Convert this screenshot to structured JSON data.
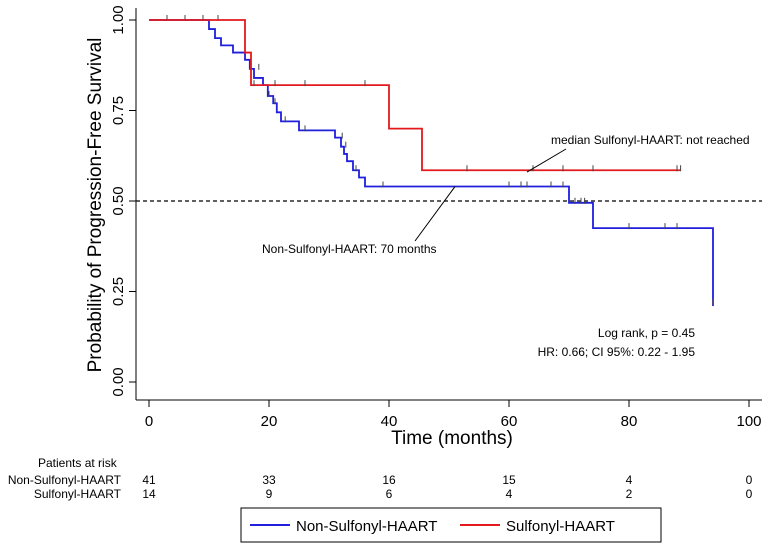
{
  "chart_data": {
    "type": "line",
    "subtype": "kaplan-meier",
    "xlabel": "Time (months)",
    "ylabel": "Probability of Progression-Free Survival",
    "xlim": [
      0,
      100
    ],
    "ylim": [
      0,
      1
    ],
    "x_ticks": [
      0,
      20,
      40,
      60,
      80,
      100
    ],
    "y_ticks": [
      0.0,
      0.25,
      0.5,
      0.75,
      1.0
    ],
    "x_tick_labels": [
      "0",
      "20",
      "40",
      "60",
      "80",
      "100"
    ],
    "y_tick_labels": [
      "0.00",
      "0.25",
      "0.50",
      "0.75",
      "1.00"
    ],
    "reference_line": {
      "y": 0.5,
      "style": "dashed"
    },
    "series": [
      {
        "name": "Non-Sulfonyl-HAART",
        "color": "#1f1fdc",
        "steps": [
          [
            0,
            1.0
          ],
          [
            10,
            0.975
          ],
          [
            11,
            0.95
          ],
          [
            12,
            0.93
          ],
          [
            14,
            0.91
          ],
          [
            16,
            0.89
          ],
          [
            16.8,
            0.865
          ],
          [
            17.5,
            0.84
          ],
          [
            19,
            0.82
          ],
          [
            19.8,
            0.79
          ],
          [
            20.7,
            0.77
          ],
          [
            21.3,
            0.745
          ],
          [
            22,
            0.72
          ],
          [
            25,
            0.695
          ],
          [
            31,
            0.675
          ],
          [
            32,
            0.65
          ],
          [
            32.5,
            0.63
          ],
          [
            33,
            0.61
          ],
          [
            34,
            0.585
          ],
          [
            35,
            0.565
          ],
          [
            36,
            0.54
          ],
          [
            70,
            0.495
          ],
          [
            74,
            0.425
          ],
          [
            94,
            0.21
          ]
        ],
        "censor_times": [
          [
            3,
            1.0
          ],
          [
            6,
            1.0
          ],
          [
            9,
            1.0
          ],
          [
            11.5,
            1.0
          ],
          [
            18.3,
            0.865
          ],
          [
            20,
            0.79
          ],
          [
            21,
            0.77
          ],
          [
            22.7,
            0.72
          ],
          [
            26,
            0.695
          ],
          [
            32.2,
            0.675
          ],
          [
            32.8,
            0.65
          ],
          [
            34.5,
            0.585
          ],
          [
            39,
            0.54
          ],
          [
            60,
            0.54
          ],
          [
            62,
            0.54
          ],
          [
            63,
            0.54
          ],
          [
            67,
            0.54
          ],
          [
            69,
            0.54
          ],
          [
            71,
            0.495
          ],
          [
            72,
            0.495
          ],
          [
            72.6,
            0.495
          ],
          [
            80,
            0.425
          ],
          [
            86,
            0.425
          ],
          [
            88,
            0.425
          ],
          [
            94,
            0.215
          ]
        ]
      },
      {
        "name": "Sulfonyl-HAART",
        "color": "#e3191e",
        "steps": [
          [
            0,
            1.0
          ],
          [
            16,
            0.91
          ],
          [
            17,
            0.82
          ],
          [
            40,
            0.7
          ],
          [
            45.5,
            0.585
          ],
          [
            88,
            0.585
          ]
        ],
        "censor_times": [
          [
            17.5,
            0.82
          ],
          [
            21,
            0.82
          ],
          [
            26,
            0.82
          ],
          [
            36,
            0.82
          ],
          [
            53,
            0.585
          ],
          [
            64,
            0.585
          ],
          [
            69,
            0.585
          ],
          [
            74,
            0.585
          ],
          [
            88,
            0.585
          ],
          [
            88.6,
            0.585
          ]
        ]
      }
    ],
    "annotations": [
      {
        "text": "median Sulfonyl-HAART: not reached",
        "target": [
          63,
          0.58
        ]
      },
      {
        "text": "Non-Sulfonyl-HAART: 70 months",
        "target": [
          51,
          0.54
        ]
      }
    ],
    "stats": [
      "Log rank, p = 0.45",
      "HR: 0.66; CI 95%: 0.22 - 1.95"
    ],
    "risk_table": {
      "title": "Patients at risk",
      "times": [
        0,
        20,
        40,
        60,
        80,
        100
      ],
      "rows": [
        {
          "label": "Non-Sulfonyl-HAART",
          "values": [
            "41",
            "33",
            "16",
            "15",
            "4",
            "0"
          ]
        },
        {
          "label": "Sulfonyl-HAART",
          "values": [
            "14",
            "9",
            "6",
            "4",
            "2",
            "0"
          ]
        }
      ]
    },
    "legend": {
      "position": "bottom",
      "entries": [
        {
          "label": "Non-Sulfonyl-HAART",
          "color": "#1f1fdc"
        },
        {
          "label": "Sulfonyl-HAART",
          "color": "#e3191e"
        }
      ]
    }
  }
}
